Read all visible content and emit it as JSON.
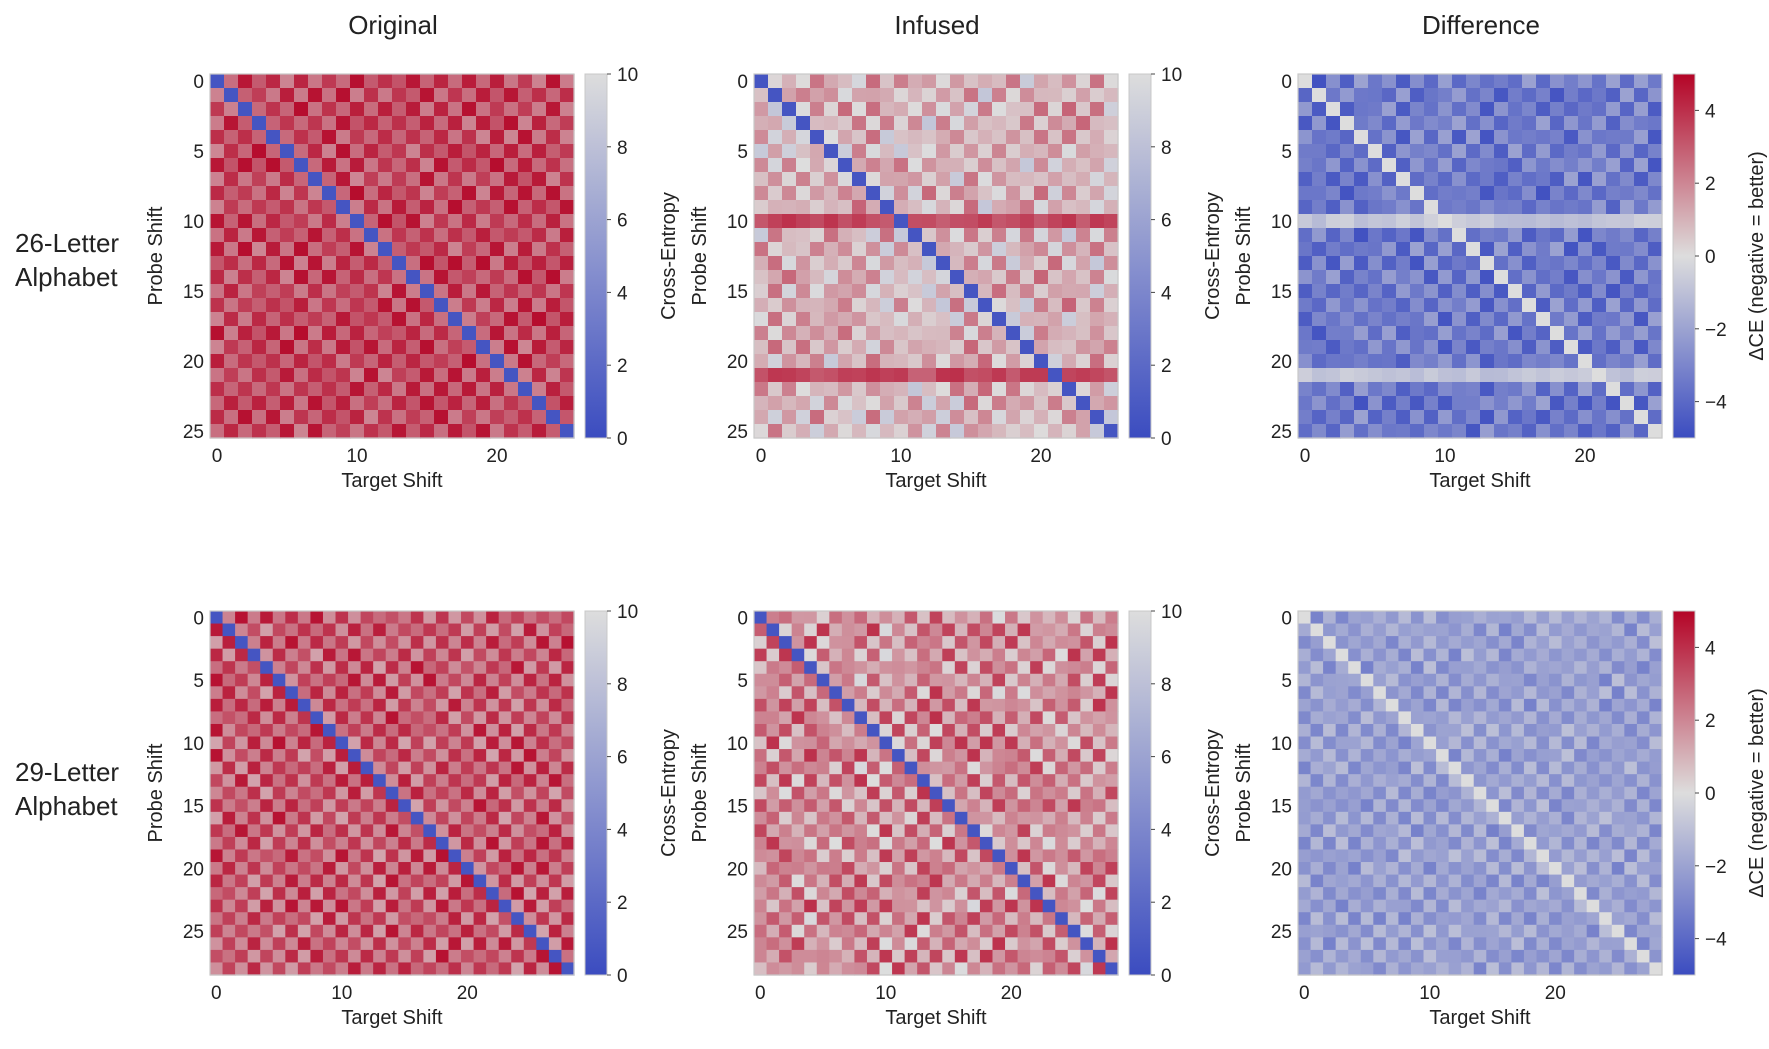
{
  "figure": {
    "column_titles": [
      "Original",
      "Infused",
      "Difference"
    ],
    "row_labels": [
      {
        "line1": "26-Letter",
        "line2": "Alphabet"
      },
      {
        "line1": "29-Letter",
        "line2": "Alphabet"
      }
    ],
    "xlabel": "Target Shift",
    "ylabel": "Probe Shift",
    "ce_colorbar_label": "Cross-Entropy",
    "diff_colorbar_label": "ΔCE (negative = better)",
    "ce_colorbar_ticks": [
      "0",
      "2",
      "4",
      "6",
      "8",
      "10"
    ],
    "diff_colorbar_ticks": [
      "4",
      "2",
      "0",
      "−2",
      "−4"
    ]
  },
  "colors": {
    "colormap": "coolwarm",
    "cmap_low": "#3b4cc0",
    "cmap_mid": "#dddddd",
    "cmap_high": "#b40426",
    "frame": "#c8c8c8"
  },
  "chart_data": [
    {
      "type": "heatmap",
      "panel": "original-26",
      "title": "Original",
      "row_label": "26-Letter Alphabet",
      "xlabel": "Target Shift",
      "ylabel": "Probe Shift",
      "size": 26,
      "vmin": 0,
      "vmax": 10,
      "xticks": [
        0,
        10,
        20
      ],
      "yticks": [
        0,
        5,
        10,
        15,
        20,
        25
      ],
      "colorbar_label": "Cross-Entropy",
      "colorbar_ticks": [
        0,
        2,
        4,
        6,
        8,
        10
      ],
      "description": "diagonal ≈ 0.3; off-diagonal ≈ 7–10, shifts ±k alternate",
      "diagonal_value": 0.3,
      "off_diagonal_range": [
        7,
        10
      ]
    },
    {
      "type": "heatmap",
      "panel": "infused-26",
      "title": "Infused",
      "row_label": "26-Letter Alphabet",
      "xlabel": "Target Shift",
      "ylabel": "Probe Shift",
      "size": 26,
      "vmin": 0,
      "vmax": 10,
      "xticks": [
        0,
        10,
        20
      ],
      "yticks": [
        0,
        5,
        10,
        15,
        20,
        25
      ],
      "colorbar_label": "Cross-Entropy",
      "colorbar_ticks": [
        0,
        2,
        4,
        6,
        8,
        10
      ],
      "diagonal_value": 0.3,
      "off_diagonal_range": [
        4,
        8
      ],
      "bright_rows": [
        10,
        21
      ]
    },
    {
      "type": "heatmap",
      "panel": "difference-26",
      "title": "Difference",
      "row_label": "26-Letter Alphabet",
      "xlabel": "Target Shift",
      "ylabel": "Probe Shift",
      "size": 26,
      "vmin": -5,
      "vmax": 5,
      "xticks": [
        0,
        10,
        20
      ],
      "yticks": [
        0,
        5,
        10,
        15,
        20,
        25
      ],
      "colorbar_label": "ΔCE (negative = better)",
      "colorbar_ticks": [
        -4,
        -2,
        0,
        2,
        4
      ],
      "diagonal_value": 0,
      "off_diagonal_range": [
        -4.6,
        -1
      ],
      "near_zero_rows": [
        10,
        21
      ]
    },
    {
      "type": "heatmap",
      "panel": "original-29",
      "title": "Original",
      "row_label": "29-Letter Alphabet",
      "xlabel": "Target Shift",
      "ylabel": "Probe Shift",
      "size": 29,
      "vmin": 0,
      "vmax": 10,
      "xticks": [
        0,
        10,
        20
      ],
      "yticks": [
        0,
        5,
        10,
        15,
        20,
        25
      ],
      "colorbar_label": "Cross-Entropy",
      "colorbar_ticks": [
        0,
        2,
        4,
        6,
        8,
        10
      ],
      "diagonal_value": 0.3,
      "off_diagonal_range": [
        6,
        10
      ]
    },
    {
      "type": "heatmap",
      "panel": "infused-29",
      "title": "Infused",
      "row_label": "29-Letter Alphabet",
      "xlabel": "Target Shift",
      "ylabel": "Probe Shift",
      "size": 29,
      "vmin": 0,
      "vmax": 10,
      "xticks": [
        0,
        10,
        20
      ],
      "yticks": [
        0,
        5,
        10,
        15,
        20,
        25
      ],
      "colorbar_label": "Cross-Entropy",
      "colorbar_ticks": [
        0,
        2,
        4,
        6,
        8,
        10
      ],
      "diagonal_value": 0.3,
      "off_diagonal_range": [
        5,
        9
      ]
    },
    {
      "type": "heatmap",
      "panel": "difference-29",
      "title": "Difference",
      "row_label": "29-Letter Alphabet",
      "xlabel": "Target Shift",
      "ylabel": "Probe Shift",
      "size": 29,
      "vmin": -5,
      "vmax": 5,
      "xticks": [
        0,
        10,
        20
      ],
      "yticks": [
        0,
        5,
        10,
        15,
        20,
        25
      ],
      "colorbar_label": "ΔCE (negative = better)",
      "colorbar_ticks": [
        -4,
        -2,
        0,
        2,
        4
      ],
      "diagonal_value": 0,
      "off_diagonal_range": [
        -3,
        0
      ]
    }
  ]
}
